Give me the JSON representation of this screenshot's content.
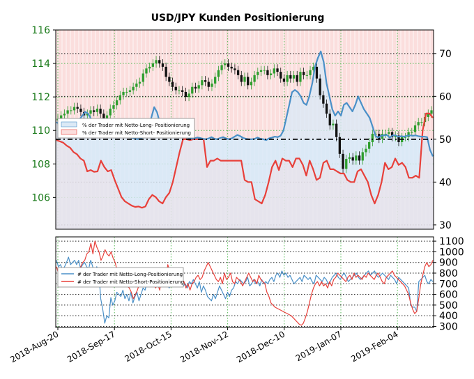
{
  "colors": {
    "long": "#4a90c8",
    "short": "#e8403a",
    "price_up": "#2e9e2e",
    "price_down": "#111111",
    "long_fill": "#dbe9f6",
    "short_fill": "#fbdedd",
    "grid_green": "#55bb55",
    "grid_black": "#222222",
    "left_axis_text": "#1a7a1a"
  },
  "chart_data": [
    {
      "type": "line",
      "title": "USD/JPY Kunden Positionierung",
      "x_tick_labels": [
        "2018-Aug-20",
        "2018-Sep-17",
        "2018-Oct-15",
        "2018-Nov-12",
        "2018-Dec-10",
        "2019-Jan-07",
        "2019-Feb-04"
      ],
      "left_axis": {
        "ticks": [
          106,
          108,
          110,
          112,
          114,
          116
        ],
        "ylim": [
          104.1,
          116
        ]
      },
      "right_axis": {
        "ticks": [
          30,
          40,
          50,
          60,
          70
        ],
        "ylim": [
          29,
          75.5
        ],
        "threshold": 50
      },
      "legend": {
        "position": "left",
        "entries": [
          "% der Trader mit Netto-Long- Positionierung",
          "% der Trader mit Netto-Short- Positionierung"
        ]
      },
      "series": [
        {
          "kind": "candles",
          "axis": "left",
          "close": [
            110.7,
            110.9,
            111.0,
            111.2,
            111.2,
            111.4,
            111.3,
            111.1,
            110.9,
            111.0,
            111.2,
            111.1,
            111.3,
            111.0,
            110.7,
            110.9,
            111.3,
            111.5,
            111.8,
            112.1,
            112.3,
            112.3,
            112.4,
            112.6,
            112.8,
            112.9,
            113.4,
            113.7,
            113.8,
            114.0,
            114.2,
            114.0,
            113.8,
            113.2,
            112.9,
            112.6,
            112.4,
            112.4,
            112.3,
            112.0,
            112.2,
            112.6,
            112.5,
            112.7,
            113.0,
            112.9,
            112.6,
            112.8,
            113.2,
            113.6,
            113.9,
            114.0,
            113.8,
            113.7,
            113.6,
            113.3,
            112.9,
            113.2,
            112.7,
            112.9,
            113.3,
            113.5,
            113.6,
            113.6,
            113.3,
            113.4,
            113.7,
            113.5,
            113.1,
            112.9,
            113.3,
            113.1,
            113.3,
            112.9,
            113.5,
            113.3,
            113.3,
            113.6,
            113.8,
            113.1,
            112.1,
            111.6,
            111.0,
            110.3,
            110.4,
            109.6,
            108.6,
            107.7,
            108.3,
            108.4,
            108.2,
            108.5,
            108.2,
            108.7,
            108.9,
            109.3,
            109.8,
            109.8,
            109.5,
            109.8,
            109.8,
            109.9,
            109.6,
            109.7,
            109.3,
            109.6,
            109.6,
            109.9,
            109.9,
            110.3,
            110.5,
            110.5,
            110.8,
            111.0,
            111.2
          ]
        },
        {
          "name": "% der Trader mit Netto-Long- Positionierung",
          "axis": "right",
          "values": [
            54,
            53.5,
            53,
            52.7,
            53.3,
            53,
            54.4,
            54,
            54.6,
            55.5,
            56.4,
            56,
            54.8,
            53.8,
            53,
            52.8,
            52.4,
            52.2,
            52,
            51.8,
            51.6,
            51.4,
            51.2,
            51,
            50.8,
            50.6,
            50.4,
            50.2,
            50,
            50.1,
            50.4,
            51,
            52.5,
            55,
            57.5,
            56.3,
            53.8,
            52.4,
            52,
            51.7,
            51.5,
            51.3,
            51.1,
            50.9,
            50.7,
            50.5,
            50.3,
            50.1,
            50.2,
            50.4,
            50.3,
            50.1,
            50,
            50.2,
            50.5,
            50.1,
            50,
            50.3,
            50.5,
            50.2,
            50,
            50.2,
            50.6,
            51,
            50.7,
            50.3,
            50.1,
            50,
            50,
            50.1,
            50.4,
            50.1,
            50,
            49.8,
            50.2,
            50.4,
            50.6,
            50.5,
            50.8,
            52,
            55,
            58,
            61,
            61.5,
            61,
            60,
            58.5,
            58,
            60,
            63,
            67,
            69,
            70.5,
            68,
            63,
            60,
            57,
            55.5,
            56.5,
            55.5,
            58,
            58.5,
            57.5,
            56.5,
            58,
            60,
            58.5,
            57,
            56,
            55,
            53,
            50.8,
            50.4,
            50.8,
            50.9,
            51,
            50.4,
            50.9,
            50.9,
            50.6,
            50.7,
            50.6,
            50.8,
            50.9,
            50.8,
            50.9,
            50.7,
            50.6,
            50.6,
            50.5,
            47.5,
            46
          ]
        },
        {
          "name": "% der Trader mit Netto-Short- Positionierung",
          "axis": "right",
          "values": [
            49.8,
            49.5,
            49.2,
            48.5,
            48,
            47,
            46.5,
            45.5,
            45,
            42.5,
            42.8,
            42.4,
            42.5,
            45,
            43.5,
            42.5,
            42.8,
            40.5,
            38.5,
            36.5,
            35.5,
            35,
            34.5,
            34.2,
            34.3,
            34,
            34.3,
            36,
            37,
            36.5,
            35.5,
            35,
            36.5,
            37.5,
            40,
            43.5,
            47,
            50,
            50,
            49.8,
            50,
            50,
            50,
            50,
            43.5,
            45,
            45,
            45.5,
            45,
            45,
            45,
            45,
            45,
            45,
            45,
            40.5,
            40,
            40,
            36,
            35.5,
            35,
            37,
            40,
            43.5,
            45,
            42.8,
            45.5,
            45,
            45,
            43.5,
            45.5,
            45.5,
            44,
            41.5,
            45,
            43,
            40.5,
            41,
            44.5,
            45,
            43,
            43,
            42.5,
            42,
            42,
            40.5,
            40,
            40,
            42.5,
            43,
            41.5,
            40,
            37,
            35,
            37,
            40,
            44.5,
            43,
            43.5,
            45.5,
            44,
            44.5,
            43.5,
            41,
            41,
            41.5,
            41,
            52,
            56,
            56,
            55
          ]
        }
      ]
    },
    {
      "type": "line",
      "x_tick_labels": [
        "2018-Aug-20",
        "2018-Sep-17",
        "2018-Oct-15",
        "2018-Nov-12",
        "2018-Dec-10",
        "2019-Jan-07",
        "2019-Feb-04"
      ],
      "right_axis": {
        "ticks": [
          300,
          400,
          500,
          600,
          700,
          800,
          900,
          1000,
          1100
        ],
        "ylim": [
          290,
          1140
        ]
      },
      "legend": {
        "position": "left",
        "entries": [
          "# der Trader mit Netto-Long-Positionierung",
          "# der Trader mit Netto-Short-Positionierung"
        ]
      },
      "series": [
        {
          "name": "# der Trader mit Netto-Long-Positionierung",
          "values": [
            920,
            860,
            880,
            830,
            860,
            900,
            950,
            880,
            900,
            920,
            880,
            920,
            840,
            880,
            900,
            860,
            840,
            920,
            860,
            800,
            860,
            820,
            560,
            460,
            330,
            400,
            380,
            570,
            500,
            540,
            620,
            600,
            580,
            640,
            560,
            600,
            540,
            620,
            520,
            580,
            620,
            540,
            600,
            660,
            640,
            720,
            740,
            700,
            760,
            700,
            720,
            740,
            680,
            760,
            720,
            700,
            660,
            700,
            720,
            680,
            700,
            760,
            740,
            680,
            700,
            660,
            720,
            700,
            740,
            700,
            660,
            720,
            620,
            680,
            640,
            580,
            560,
            540,
            600,
            560,
            620,
            680,
            640,
            600,
            560,
            620,
            580,
            640,
            660,
            720,
            700,
            740,
            720,
            700,
            720,
            760,
            680,
            700,
            740,
            700,
            720,
            680,
            740,
            700,
            720,
            700,
            740,
            760,
            720,
            780,
            800,
            760,
            820,
            780,
            800,
            760,
            780,
            740,
            700,
            720,
            740,
            760,
            720,
            780,
            760,
            740,
            760,
            720,
            700,
            780,
            760,
            740,
            720,
            760,
            740,
            700,
            720,
            760,
            780,
            800,
            760,
            740,
            780,
            800,
            760,
            720,
            740,
            760,
            780,
            800,
            760,
            740,
            760,
            780,
            800,
            820,
            780,
            800,
            820,
            780,
            760,
            780,
            800,
            780,
            760,
            740,
            780,
            760,
            740,
            700,
            760,
            740,
            720,
            700,
            680,
            660,
            500,
            480,
            480,
            440,
            720,
            740,
            760,
            780,
            720,
            700,
            740,
            720
          ]
        },
        {
          "name": "# der Trader mit Netto-Short-Positionierung",
          "values": [
            860,
            800,
            840,
            760,
            820,
            780,
            740,
            680,
            720,
            700,
            760,
            820,
            860,
            900,
            920,
            980,
            1000,
            1080,
            980,
            1100,
            1040,
            1000,
            920,
            960,
            1020,
            980,
            960,
            1000,
            940,
            900,
            820,
            760,
            740,
            700,
            720,
            680,
            660,
            620,
            560,
            600,
            640,
            700,
            740,
            760,
            800,
            760,
            820,
            740,
            700,
            660,
            700,
            640,
            760,
            720,
            720,
            880,
            820,
            800,
            760,
            680,
            700,
            680,
            740,
            720,
            660,
            700,
            640,
            700,
            720,
            760,
            780,
            740,
            760,
            820,
            860,
            900,
            860,
            820,
            780,
            740,
            720,
            760,
            700,
            800,
            740,
            760,
            800,
            720,
            700,
            760,
            740,
            720,
            680,
            720,
            760,
            800,
            760,
            720,
            740,
            700,
            780,
            740,
            720,
            700,
            620,
            580,
            520,
            500,
            480,
            470,
            460,
            450,
            440,
            430,
            420,
            410,
            400,
            380,
            360,
            340,
            320,
            310,
            330,
            380,
            440,
            520,
            600,
            660,
            700,
            720,
            680,
            720,
            680,
            700,
            660,
            720,
            680,
            740,
            760,
            800,
            780,
            760,
            740,
            720,
            760,
            780,
            740,
            800,
            760,
            780,
            760,
            740,
            780,
            760,
            800,
            780,
            760,
            740,
            780,
            800,
            760,
            720,
            700,
            760,
            780,
            800,
            820,
            780,
            760,
            740,
            720,
            700,
            680,
            640,
            600,
            520,
            460,
            420,
            440,
            560,
            700,
            780,
            860,
            900,
            860,
            880,
            920
          ]
        }
      ]
    }
  ]
}
